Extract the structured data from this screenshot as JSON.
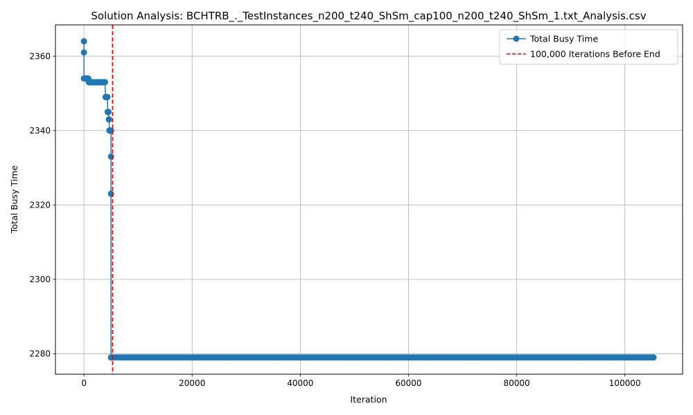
{
  "chart_data": {
    "type": "line",
    "title": "Solution Analysis: BCHTRB_._TestInstances_n200_t240_ShSm_cap100_n200_t240_ShSm_1.txt_Analysis.csv",
    "xlabel": "Iteration",
    "ylabel": "Total Busy Time",
    "xlim": [
      -5270,
      110670
    ],
    "ylim": [
      2274.5,
      2368.4
    ],
    "xticks": [
      0,
      20000,
      40000,
      60000,
      80000,
      100000
    ],
    "xtick_labels": [
      "0",
      "20000",
      "40000",
      "60000",
      "80000",
      "100000"
    ],
    "yticks": [
      2280,
      2300,
      2320,
      2340,
      2360
    ],
    "ytick_labels": [
      "2280",
      "2300",
      "2320",
      "2340",
      "2360"
    ],
    "grid": true,
    "legend_position": "top-right",
    "series": [
      {
        "name": "Total Busy Time",
        "color": "#1f77b4",
        "marker": "circle",
        "x": [
          0,
          0,
          0,
          100,
          200,
          300,
          400,
          500,
          600,
          700,
          800,
          900,
          1000,
          1100,
          1200,
          1300,
          1400,
          1500,
          1600,
          1700,
          1800,
          1900,
          2000,
          2100,
          2200,
          2300,
          2400,
          2500,
          2600,
          2700,
          2800,
          2900,
          3000,
          3100,
          3200,
          3300,
          3400,
          3500,
          3600,
          3700,
          3800,
          3900,
          4000,
          4050,
          4100,
          4150,
          4200,
          4250,
          4300,
          4350,
          4400,
          4400,
          4450,
          4500,
          4550,
          4600,
          4650,
          4700,
          4750,
          4800,
          4850,
          4900,
          5000,
          5000,
          5000,
          5000,
          5050,
          5100,
          104000,
          105300
        ],
        "y": [
          2364,
          2361,
          2354,
          2354,
          2354,
          2354,
          2354,
          2354,
          2354,
          2354,
          2354,
          2353,
          2353,
          2353,
          2353,
          2353,
          2353,
          2353,
          2353,
          2353,
          2353,
          2353,
          2353,
          2353,
          2353,
          2353,
          2353,
          2353,
          2353,
          2353,
          2353,
          2353,
          2353,
          2353,
          2353,
          2353,
          2353,
          2353,
          2353,
          2353,
          2353,
          2353,
          2349,
          2349,
          2349,
          2349,
          2349,
          2349,
          2349,
          2349,
          2345,
          2345,
          2345,
          2345,
          2345,
          2343,
          2343,
          2340,
          2340,
          2340,
          2340,
          2340,
          2340,
          2333,
          2323,
          2279,
          2279,
          2279,
          2279,
          2279
        ]
      }
    ],
    "vlines": [
      {
        "name": "100,000 Iterations Before End",
        "x": 5300,
        "color": "#ff0000",
        "style": "dashed"
      }
    ]
  }
}
